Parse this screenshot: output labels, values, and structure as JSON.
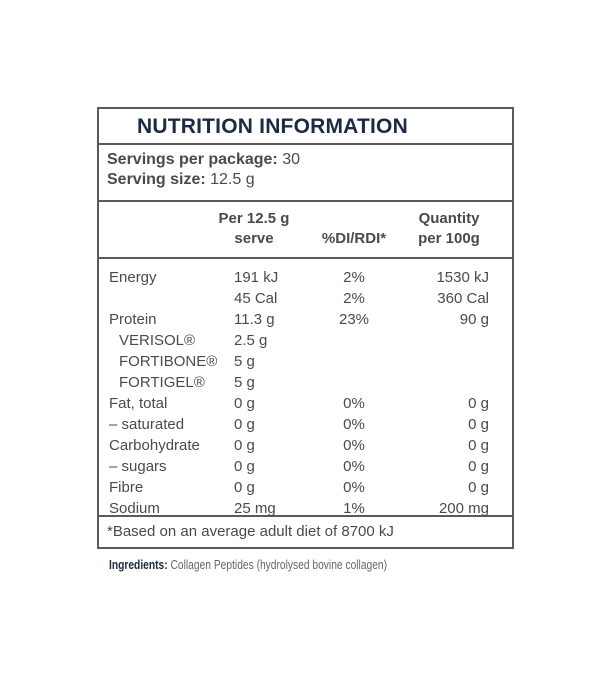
{
  "title": "NUTRITION INFORMATION",
  "servings": {
    "per_package_label": "Servings per package:",
    "per_package_value": "30",
    "size_label": "Serving size:",
    "size_value": "12.5 g"
  },
  "headers": {
    "serve_line1": "Per 12.5 g",
    "serve_line2": "serve",
    "di": "%DI/RDI*",
    "qty_line1": "Quantity",
    "qty_line2": "per 100g"
  },
  "rows": [
    {
      "label": "Energy",
      "serve": "191 kJ",
      "di": "2%",
      "qty": "1530 kJ"
    },
    {
      "label": "",
      "serve": "45 Cal",
      "di": "2%",
      "qty": "360 Cal"
    },
    {
      "label": "Protein",
      "serve": "11.3 g",
      "di": "23%",
      "qty": "90 g"
    },
    {
      "label": "VERISOL®",
      "serve": "2.5 g",
      "di": "",
      "qty": "",
      "indent": true
    },
    {
      "label": "FORTIBONE®",
      "serve": "5 g",
      "di": "",
      "qty": "",
      "indent": true
    },
    {
      "label": "FORTIGEL®",
      "serve": "5 g",
      "di": "",
      "qty": "",
      "indent": true
    },
    {
      "label": "Fat, total",
      "serve": "0 g",
      "di": "0%",
      "qty": "0 g"
    },
    {
      "label": "– saturated",
      "serve": "0 g",
      "di": "0%",
      "qty": "0 g"
    },
    {
      "label": "Carbohydrate",
      "serve": "0 g",
      "di": "0%",
      "qty": "0 g"
    },
    {
      "label": "– sugars",
      "serve": "0 g",
      "di": "0%",
      "qty": "0 g"
    },
    {
      "label": "Fibre",
      "serve": "0 g",
      "di": "0%",
      "qty": "0 g"
    },
    {
      "label": "Sodium",
      "serve": "25 mg",
      "di": "1%",
      "qty": "200 mg"
    }
  ],
  "footnote": "*Based on an average adult diet of 8700 kJ",
  "ingredients": {
    "label": "Ingredients:",
    "text": "Collagen Peptides (hydrolysed bovine collagen)"
  }
}
